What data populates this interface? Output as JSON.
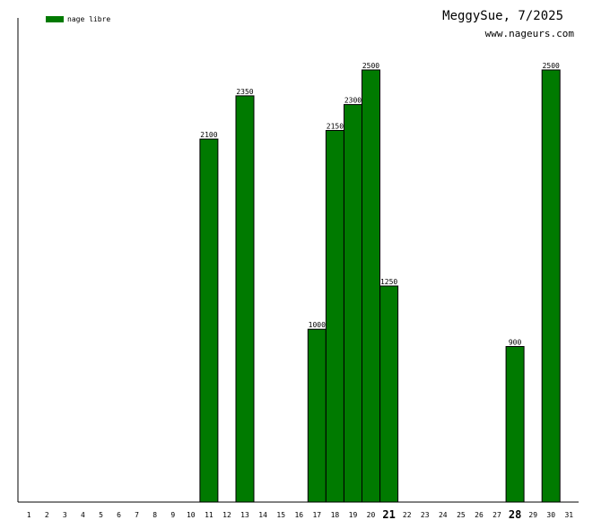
{
  "header": {
    "title": "MeggySue, 7/2025",
    "site": "www.nageurs.com"
  },
  "colors": {
    "bar": "#007a00",
    "axis": "#000000"
  },
  "chart_data": {
    "type": "bar",
    "categories": [
      "1",
      "2",
      "3",
      "4",
      "5",
      "6",
      "7",
      "8",
      "9",
      "10",
      "11",
      "12",
      "13",
      "14",
      "15",
      "16",
      "17",
      "18",
      "19",
      "20",
      "21",
      "22",
      "23",
      "24",
      "25",
      "26",
      "27",
      "28",
      "29",
      "30",
      "31"
    ],
    "series": [
      {
        "name": "nage libre",
        "values": [
          0,
          0,
          0,
          0,
          0,
          0,
          0,
          0,
          0,
          0,
          2100,
          0,
          2350,
          0,
          0,
          0,
          1000,
          2150,
          2300,
          2500,
          1250,
          0,
          0,
          0,
          0,
          0,
          0,
          900,
          0,
          2500,
          0
        ]
      }
    ],
    "emphasized_categories": [
      "21",
      "28"
    ],
    "ylim": [
      0,
      2500
    ],
    "grid": false,
    "legend_position": "top-left"
  }
}
